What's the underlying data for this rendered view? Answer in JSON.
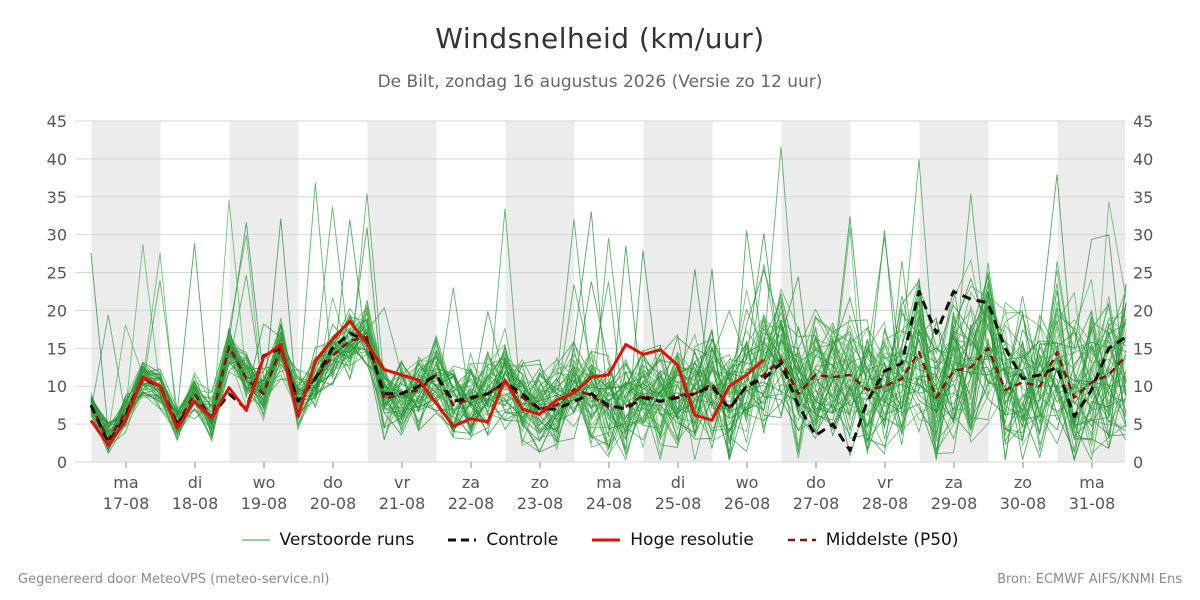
{
  "title": "Windsnelheid (km/uur)",
  "subtitle": "De Bilt, zondag 16 augustus 2026 (Versie zo 12 uur)",
  "footer": {
    "left": "Gegenereerd door MeteoVPS (meteo-service.nl)",
    "right": "Bron: ECMWF AIFS/KNMI Ens"
  },
  "colors": {
    "members": "#2e9e3e",
    "control": "#111111",
    "hires": "#e0100b",
    "median": "#8b1010",
    "band": "#ececec",
    "grid": "#d6d6d6"
  },
  "legend": [
    {
      "label": "Verstoorde runs",
      "style": "members"
    },
    {
      "label": "Controle",
      "style": "control"
    },
    {
      "label": "Hoge resolutie",
      "style": "hires"
    },
    {
      "label": "Middelste (P50)",
      "style": "median"
    }
  ],
  "chart_data": {
    "type": "line",
    "ylim": [
      0,
      45
    ],
    "yticks": [
      0,
      5,
      10,
      15,
      20,
      25,
      30,
      35,
      40,
      45
    ],
    "x_step_hours": 6,
    "x_start": "2026-08-17 00:00",
    "shaded_days": [
      "17-08",
      "19-08",
      "21-08",
      "23-08",
      "25-08",
      "27-08",
      "29-08",
      "31-08"
    ],
    "day_labels": [
      {
        "day": "ma",
        "date": "17-08"
      },
      {
        "day": "di",
        "date": "18-08"
      },
      {
        "day": "wo",
        "date": "19-08"
      },
      {
        "day": "do",
        "date": "20-08"
      },
      {
        "day": "vr",
        "date": "21-08"
      },
      {
        "day": "za",
        "date": "22-08"
      },
      {
        "day": "zo",
        "date": "23-08"
      },
      {
        "day": "ma",
        "date": "24-08"
      },
      {
        "day": "di",
        "date": "25-08"
      },
      {
        "day": "wo",
        "date": "26-08"
      },
      {
        "day": "do",
        "date": "27-08"
      },
      {
        "day": "vr",
        "date": "28-08"
      },
      {
        "day": "za",
        "date": "29-08"
      },
      {
        "day": "zo",
        "date": "30-08"
      },
      {
        "day": "ma",
        "date": "31-08"
      }
    ],
    "series": [
      {
        "name": "Controle",
        "values": [
          7.5,
          2.5,
          6,
          11,
          10,
          5,
          8,
          6,
          9,
          7,
          14,
          15,
          8,
          11,
          15,
          17,
          16,
          9,
          9,
          10,
          11.5,
          8,
          8.5,
          9,
          10.5,
          9,
          7,
          7,
          8,
          9,
          7.5,
          7,
          8.5,
          8,
          8.5,
          9,
          10,
          7,
          10,
          11,
          13,
          7.5,
          3.5,
          5,
          1.5,
          8,
          12,
          13,
          22.5,
          17,
          22.5,
          21.5,
          21,
          15,
          11,
          11.5,
          12.5,
          6,
          9.5,
          15,
          16.5
        ]
      },
      {
        "name": "Hoge resolutie",
        "values": [
          5.5,
          2.2,
          5.5,
          11.2,
          10,
          4.5,
          8,
          5.8,
          9.8,
          6.8,
          13.8,
          15.5,
          6,
          13.3,
          16.2,
          18.6,
          15.6,
          12.2,
          11.5,
          10.8,
          7.8,
          4.7,
          5.7,
          5.3,
          10.8,
          7,
          6.3,
          8.2,
          9.1,
          11.2,
          11.5,
          15.5,
          14.2,
          14.8,
          12.8,
          6.2,
          5.5,
          10,
          11.5,
          13.5
        ]
      },
      {
        "name": "Middelste (P50)",
        "values": [
          7.5,
          3,
          6.5,
          11,
          10,
          5,
          9,
          5.8,
          15.2,
          11,
          9,
          15,
          8,
          11,
          14,
          16,
          16.5,
          8.3,
          9,
          9.5,
          11.5,
          7.5,
          8.3,
          9,
          10.5,
          8.5,
          7,
          7.5,
          9.6,
          8.8,
          7.2,
          7.3,
          8.8,
          8,
          8.8,
          9,
          10.3,
          7.2,
          10,
          11.5,
          13.5,
          9,
          11.5,
          11.2,
          11.5,
          9.5,
          10,
          11,
          14.5,
          8.5,
          12,
          12.5,
          15,
          9.5,
          10.5,
          10,
          14.5,
          8.5,
          10.5,
          11.5,
          14
        ]
      }
    ],
    "ensemble_members": 50
  }
}
